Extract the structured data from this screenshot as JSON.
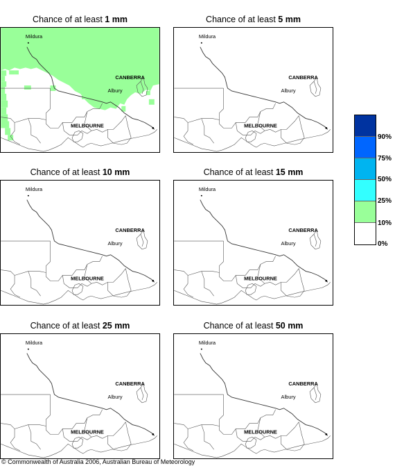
{
  "panels": [
    {
      "prefix": "Chance of at least ",
      "amount": "1 mm",
      "fill": true
    },
    {
      "prefix": "Chance of at least ",
      "amount": "5 mm",
      "fill": false
    },
    {
      "prefix": "Chance of at least ",
      "amount": "10 mm",
      "fill": false
    },
    {
      "prefix": "Chance of at least ",
      "amount": "15 mm",
      "fill": false
    },
    {
      "prefix": "Chance of at least ",
      "amount": "25 mm",
      "fill": false
    },
    {
      "prefix": "Chance of at least ",
      "amount": "50 mm",
      "fill": false
    }
  ],
  "map_labels": {
    "mildura": "Mildura",
    "canberra": "CANBERRA",
    "albury": "Albury",
    "melbourne": "MELBOURNE"
  },
  "legend": {
    "colors": [
      "#0033a0",
      "#0066ff",
      "#00b4f0",
      "#33ffff",
      "#99ff99",
      "#ffffff"
    ],
    "labels": [
      "90%",
      "75%",
      "50%",
      "25%",
      "10%",
      "0%"
    ]
  },
  "fill_color": "#99ff99",
  "footer": "© Commonwealth of Australia 2006, Australian Bureau of Meteorology"
}
